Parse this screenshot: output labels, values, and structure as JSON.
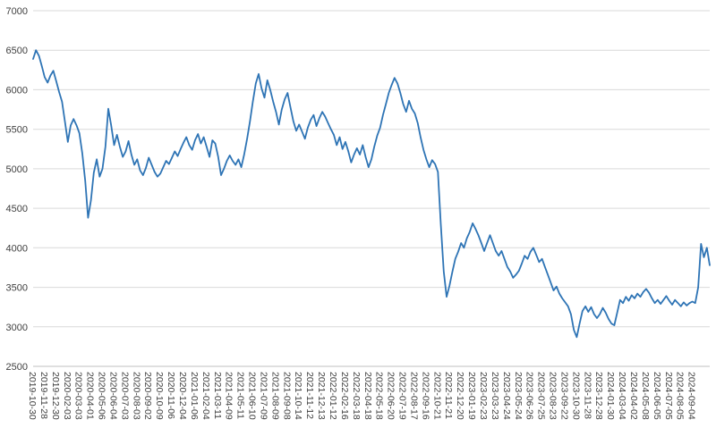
{
  "chart_data": {
    "type": "line",
    "grid": "horizontal",
    "legend": "none",
    "line_color": "#2E74B5",
    "grid_color": "#D9D9D9",
    "axis_color": "#BFBFBF",
    "text_color": "#3F3F3F",
    "background_color": "#FFFFFF",
    "ylim": [
      2500,
      7000
    ],
    "y_tick_step": 500,
    "y_tick_labels": [
      "2500",
      "3000",
      "3500",
      "4000",
      "4500",
      "5000",
      "5500",
      "6000",
      "6500",
      "7000"
    ],
    "points_per_tick": 4,
    "x_tick_labels": [
      "2019-10-30",
      "2019-11-28",
      "2019-12-30",
      "2020-02-03",
      "2020-03-03",
      "2020-04-01",
      "2020-05-06",
      "2020-06-04",
      "2020-07-03",
      "2020-08-03",
      "2020-09-02",
      "2020-10-09",
      "2020-11-06",
      "2020-12-04",
      "2021-01-06",
      "2021-02-04",
      "2021-03-11",
      "2021-04-09",
      "2021-05-11",
      "2021-06-10",
      "2021-07-09",
      "2021-08-09",
      "2021-09-08",
      "2021-10-14",
      "2021-11-12",
      "2021-12-13",
      "2022-01-12",
      "2022-02-16",
      "2022-03-18",
      "2022-04-18",
      "2022-05-18",
      "2022-06-20",
      "2022-07-19",
      "2022-08-17",
      "2022-09-16",
      "2022-10-21",
      "2022-11-21",
      "2022-12-20",
      "2023-01-19",
      "2023-02-23",
      "2023-03-23",
      "2023-04-24",
      "2023-05-24",
      "2023-06-26",
      "2023-07-25",
      "2023-08-23",
      "2023-09-22",
      "2023-10-30",
      "2023-11-28",
      "2023-12-28",
      "2024-01-30",
      "2024-03-04",
      "2024-04-02",
      "2024-05-08",
      "2024-06-05",
      "2024-07-05",
      "2024-08-05",
      "2024-09-04"
    ],
    "values": [
      6390,
      6500,
      6430,
      6300,
      6160,
      6090,
      6180,
      6240,
      6110,
      5970,
      5850,
      5600,
      5340,
      5550,
      5630,
      5550,
      5450,
      5200,
      4850,
      4380,
      4600,
      4950,
      5120,
      4900,
      5000,
      5280,
      5760,
      5550,
      5300,
      5430,
      5280,
      5150,
      5220,
      5350,
      5180,
      5050,
      5120,
      4980,
      4920,
      5010,
      5140,
      5050,
      4960,
      4900,
      4940,
      5020,
      5100,
      5060,
      5140,
      5220,
      5160,
      5250,
      5330,
      5400,
      5300,
      5240,
      5360,
      5440,
      5320,
      5400,
      5280,
      5150,
      5360,
      5320,
      5150,
      4920,
      5000,
      5100,
      5170,
      5100,
      5050,
      5120,
      5020,
      5180,
      5380,
      5600,
      5850,
      6080,
      6200,
      6020,
      5900,
      6120,
      6000,
      5850,
      5720,
      5560,
      5750,
      5880,
      5960,
      5780,
      5600,
      5480,
      5560,
      5470,
      5380,
      5520,
      5620,
      5680,
      5540,
      5640,
      5720,
      5660,
      5580,
      5500,
      5430,
      5300,
      5400,
      5250,
      5340,
      5220,
      5080,
      5180,
      5260,
      5180,
      5300,
      5150,
      5020,
      5120,
      5280,
      5420,
      5520,
      5680,
      5820,
      5960,
      6060,
      6150,
      6080,
      5960,
      5820,
      5720,
      5860,
      5760,
      5700,
      5580,
      5400,
      5240,
      5120,
      5020,
      5110,
      5060,
      4960,
      4300,
      3700,
      3380,
      3520,
      3700,
      3860,
      3950,
      4060,
      4000,
      4120,
      4200,
      4310,
      4240,
      4160,
      4060,
      3960,
      4060,
      4160,
      4060,
      3960,
      3900,
      3960,
      3860,
      3760,
      3700,
      3620,
      3660,
      3710,
      3800,
      3900,
      3860,
      3950,
      4000,
      3910,
      3820,
      3860,
      3760,
      3660,
      3560,
      3460,
      3510,
      3420,
      3360,
      3310,
      3260,
      3160,
      2960,
      2870,
      3040,
      3200,
      3260,
      3190,
      3250,
      3160,
      3110,
      3160,
      3240,
      3180,
      3100,
      3040,
      3020,
      3180,
      3340,
      3300,
      3380,
      3330,
      3400,
      3360,
      3420,
      3380,
      3440,
      3480,
      3430,
      3360,
      3300,
      3340,
      3290,
      3340,
      3390,
      3330,
      3280,
      3340,
      3300,
      3260,
      3310,
      3270,
      3300,
      3320,
      3300,
      3500,
      4050,
      3880,
      4000,
      3780
    ]
  }
}
